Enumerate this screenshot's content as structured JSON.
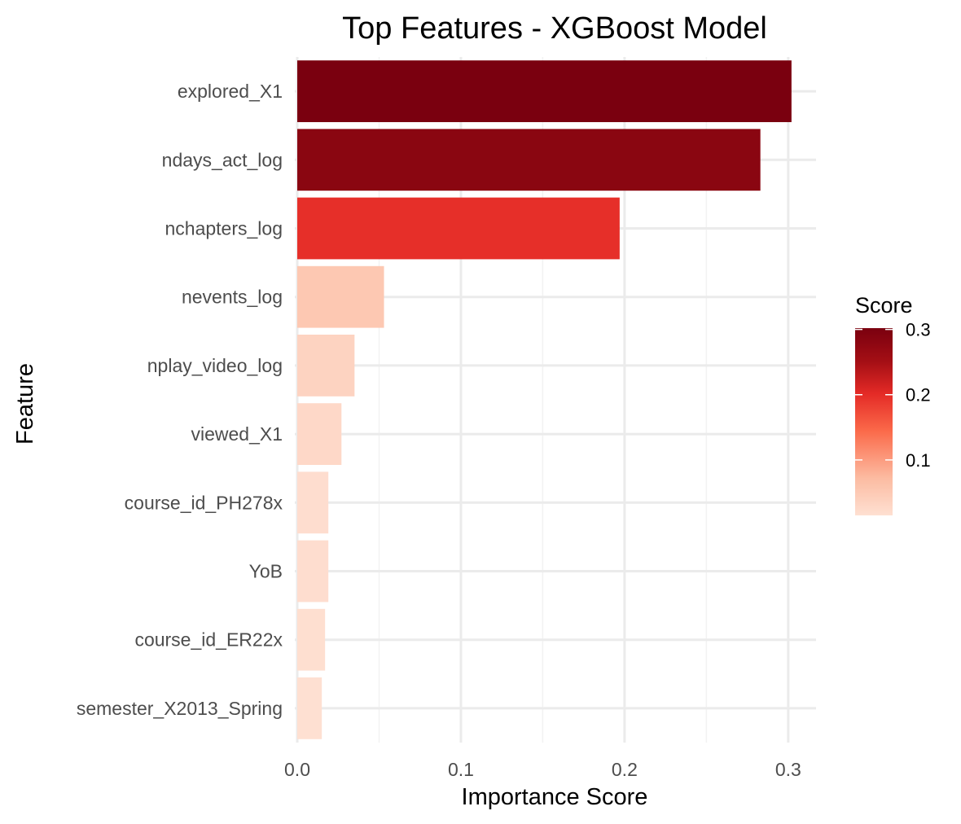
{
  "chart_data": {
    "type": "bar",
    "orientation": "horizontal",
    "title": "Top Features - XGBoost Model",
    "xlabel": "Importance Score",
    "ylabel": "Feature",
    "categories": [
      "explored_X1",
      "ndays_act_log",
      "nchapters_log",
      "nevents_log",
      "nplay_video_log",
      "viewed_X1",
      "course_id_PH278x",
      "YoB",
      "course_id_ER22x",
      "semester_X2013_Spring"
    ],
    "values": [
      0.302,
      0.283,
      0.197,
      0.053,
      0.035,
      0.027,
      0.019,
      0.019,
      0.017,
      0.015
    ],
    "xlim": [
      -0.0015,
      0.317
    ],
    "xticks": [
      0.0,
      0.1,
      0.2,
      0.3
    ],
    "xtick_labels": [
      "0.0",
      "0.1",
      "0.2",
      "0.3"
    ],
    "grid": true,
    "legend": {
      "title": "Score",
      "placement": "right",
      "ticks": [
        0.1,
        0.2,
        0.3
      ],
      "tick_labels": [
        "0.1",
        "0.2",
        "0.3"
      ],
      "range": [
        0.015,
        0.302
      ],
      "color_low": "#fee0d2",
      "color_mid": "#fb6a4a",
      "color_high": "#67000d"
    }
  }
}
